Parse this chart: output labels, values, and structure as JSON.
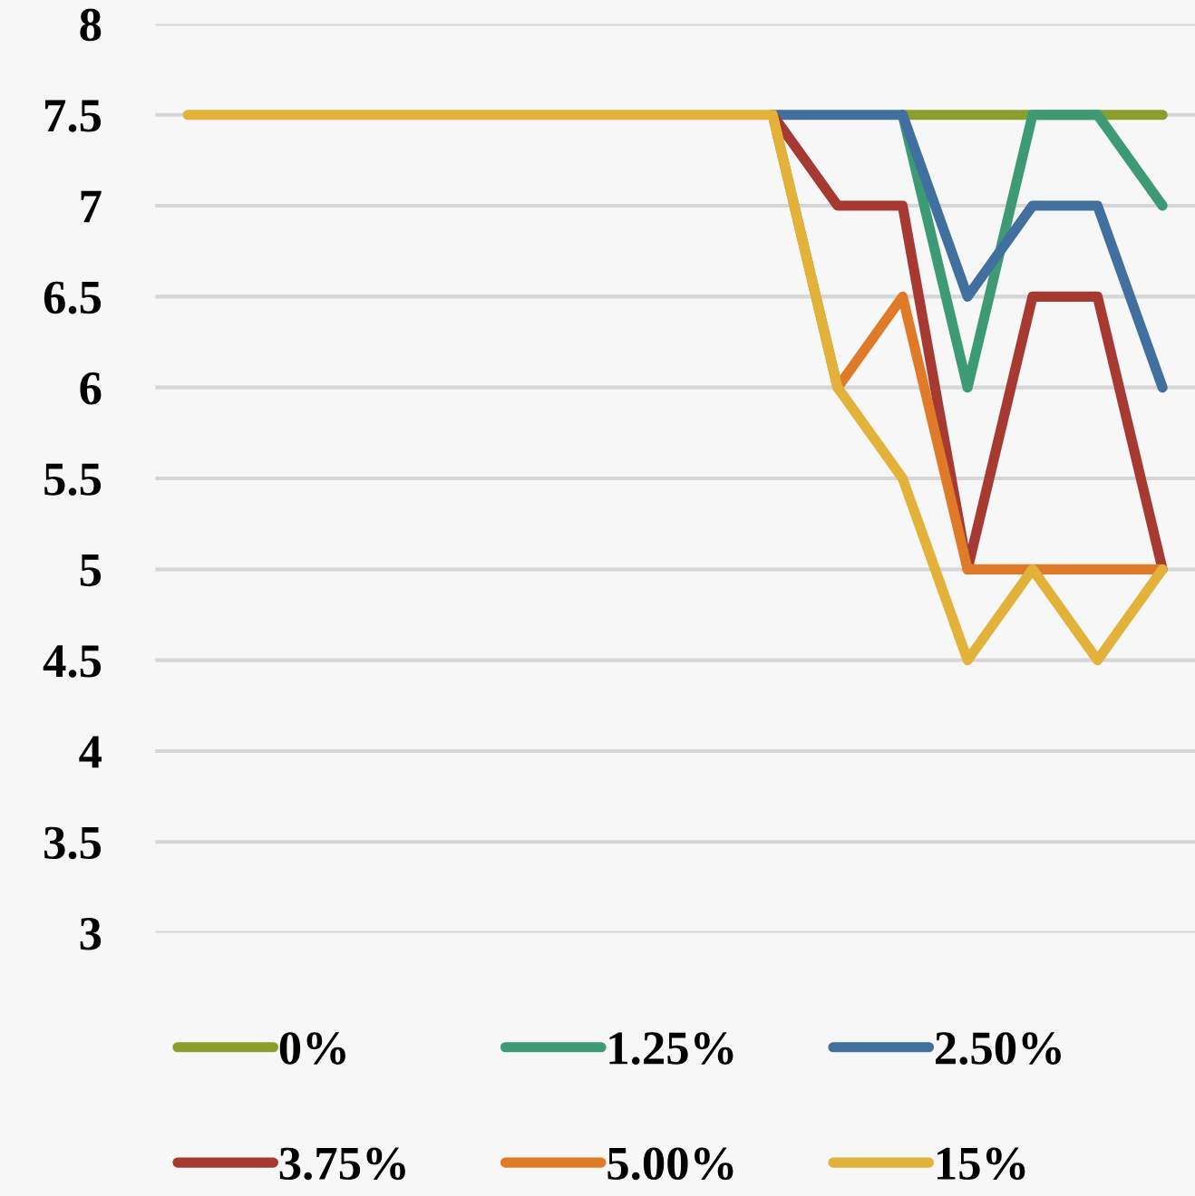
{
  "chart_data": {
    "type": "line",
    "categories": [
      null,
      null,
      null,
      null,
      null,
      null,
      null,
      null,
      null,
      null,
      null,
      null,
      null,
      null,
      null,
      null
    ],
    "series": [
      {
        "name": "0%",
        "color": "#8a9e2e",
        "values": [
          null,
          null,
          null,
          null,
          null,
          null,
          null,
          null,
          null,
          null,
          null,
          7.5,
          7.5,
          7.5,
          7.5,
          7.5
        ]
      },
      {
        "name": "1.25%",
        "color": "#3d9a74",
        "values": [
          null,
          null,
          null,
          null,
          null,
          null,
          null,
          null,
          null,
          null,
          null,
          7.5,
          6.0,
          7.5,
          7.5,
          7.0
        ]
      },
      {
        "name": "2.50%",
        "color": "#41709f",
        "values": [
          null,
          null,
          null,
          null,
          null,
          null,
          null,
          null,
          null,
          7.5,
          7.5,
          7.5,
          6.5,
          7.0,
          7.0,
          6.0
        ]
      },
      {
        "name": "3.75%",
        "color": "#a63a32",
        "values": [
          null,
          null,
          null,
          null,
          null,
          null,
          null,
          null,
          null,
          7.5,
          7.0,
          7.0,
          5.0,
          6.5,
          6.5,
          5.0
        ]
      },
      {
        "name": "5.00%",
        "color": "#df7a28",
        "values": [
          null,
          null,
          null,
          null,
          null,
          null,
          null,
          null,
          null,
          7.5,
          6.0,
          6.5,
          5.0,
          5.0,
          5.0,
          5.0
        ]
      },
      {
        "name": "15%",
        "color": "#e2b23a",
        "values": [
          7.5,
          7.5,
          7.5,
          7.5,
          7.5,
          7.5,
          7.5,
          7.5,
          7.5,
          7.5,
          6.0,
          5.5,
          4.5,
          5.0,
          4.5,
          5.0
        ]
      }
    ],
    "ylim": [
      3,
      8
    ],
    "yticks": [
      3,
      3.5,
      4,
      4.5,
      5,
      5.5,
      6,
      6.5,
      7,
      7.5,
      8
    ],
    "grid": "y",
    "legend": "bottom",
    "tick_labels": "y",
    "marker": "none",
    "line_style": "solid"
  }
}
